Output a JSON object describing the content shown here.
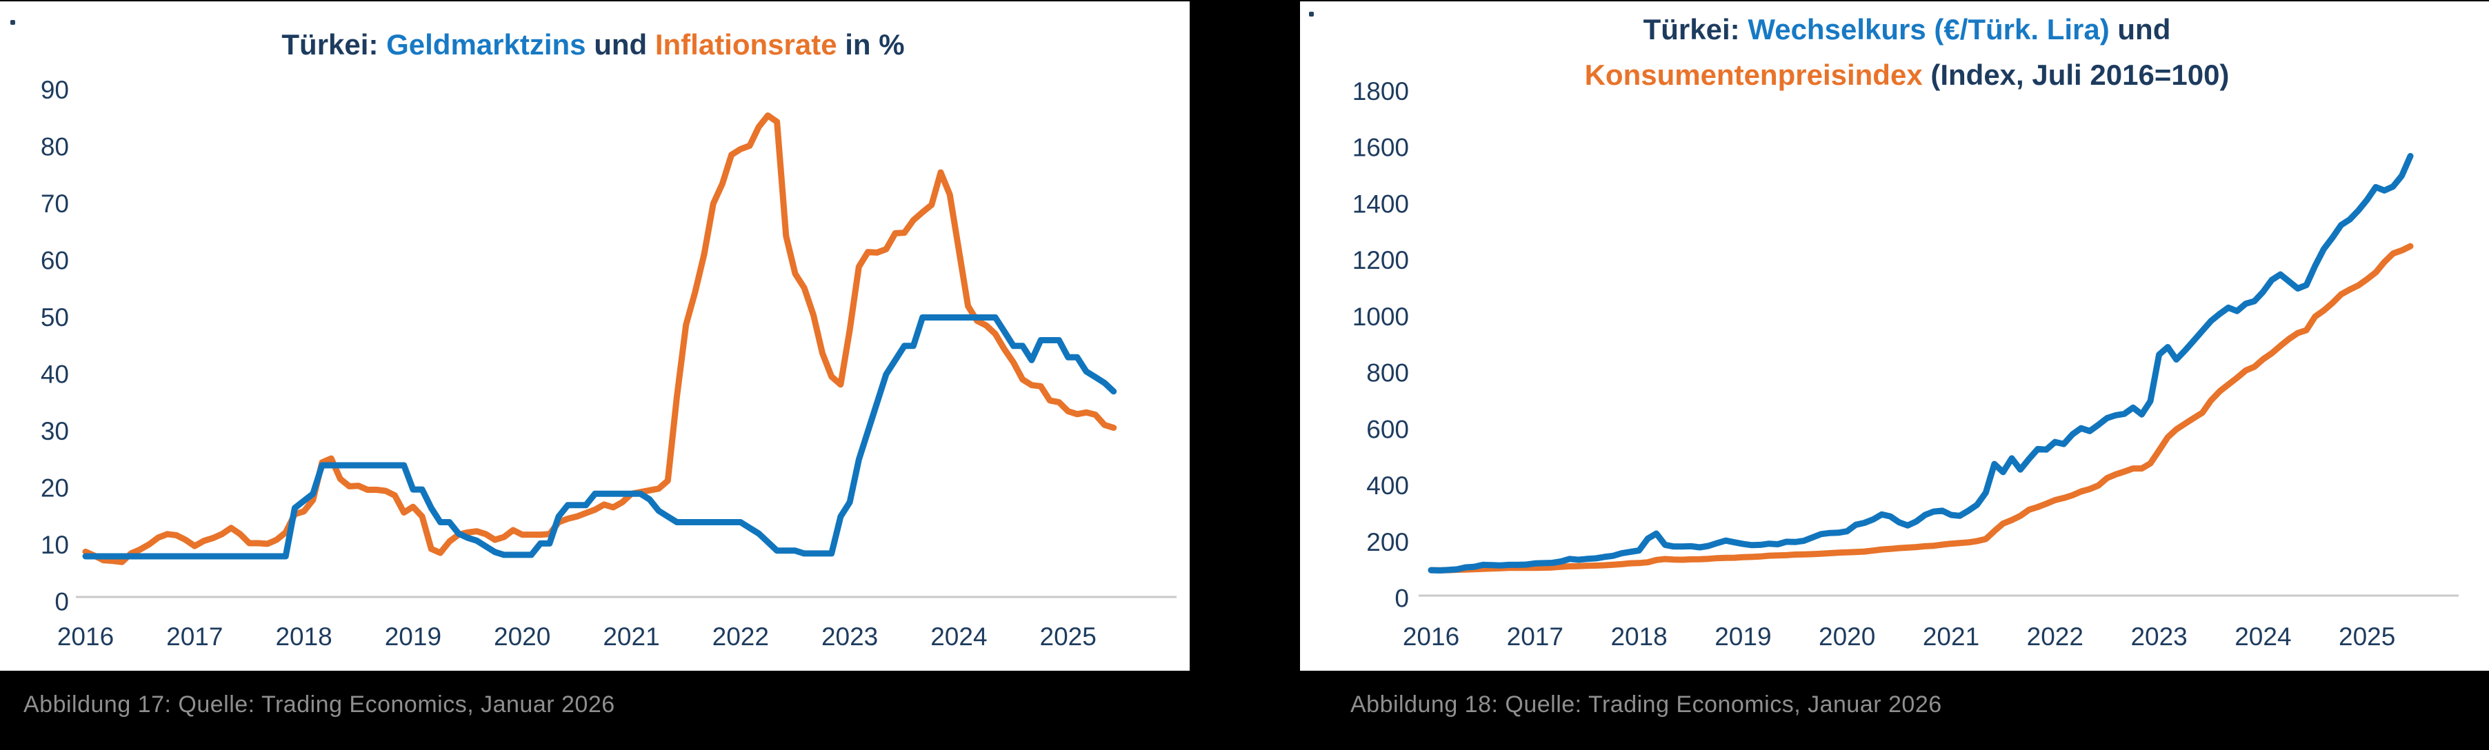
{
  "colors": {
    "background": "#000000",
    "panel": "#ffffff",
    "navy": "#1d3b5e",
    "bright_blue": "#1779c4",
    "blue": "#1175bd",
    "orange": "#e8732a",
    "caption_gray": "#8f8f8f",
    "axis_line": "#c9c9c9"
  },
  "left": {
    "title": {
      "part1": "Türkei: ",
      "part2": "Geldmarktzins",
      "part3": " und ",
      "part4": "Inflationsrate",
      "part5": " in %"
    },
    "caption": "Abbildung 17: Quelle: Trading Economics, Januar 2026",
    "chart_data": {
      "type": "line",
      "title": "Türkei: Geldmarktzins und Inflationsrate in %",
      "xlabel": "",
      "ylabel": "",
      "x_start": "2016-07",
      "x_end": "2025-12",
      "x_freq": "monthly",
      "x_tick_years": [
        "2016",
        "2017",
        "2018",
        "2019",
        "2020",
        "2021",
        "2022",
        "2023",
        "2024",
        "2025"
      ],
      "x_tick_align": "mid-year",
      "ylim": [
        0,
        90
      ],
      "yticks": [
        0,
        10,
        20,
        30,
        40,
        50,
        60,
        70,
        80,
        90
      ],
      "grid": false,
      "legend": "in-title-colors",
      "series": [
        {
          "name": "Inflationsrate",
          "color": "orange",
          "values": [
            8.8,
            8.1,
            7.3,
            7.2,
            7.0,
            8.5,
            9.2,
            10.1,
            11.3,
            11.9,
            11.7,
            10.9,
            9.8,
            10.7,
            11.2,
            11.9,
            13.0,
            11.9,
            10.3,
            10.3,
            10.2,
            10.9,
            12.2,
            15.4,
            15.9,
            17.9,
            24.5,
            25.2,
            21.6,
            20.3,
            20.4,
            19.7,
            19.7,
            19.5,
            18.7,
            15.7,
            16.7,
            15.0,
            9.3,
            8.6,
            10.6,
            11.8,
            12.2,
            12.4,
            11.9,
            10.9,
            11.4,
            12.6,
            11.8,
            11.8,
            11.8,
            11.9,
            14.0,
            14.6,
            15.0,
            15.6,
            16.2,
            17.1,
            16.6,
            17.5,
            19.0,
            19.3,
            19.6,
            19.9,
            21.3,
            36.1,
            48.7,
            54.4,
            61.1,
            70.0,
            73.5,
            78.6,
            79.6,
            80.2,
            83.5,
            85.5,
            84.4,
            64.3,
            57.7,
            55.2,
            50.5,
            43.7,
            39.6,
            38.2,
            47.8,
            58.9,
            61.5,
            61.4,
            62.0,
            64.8,
            64.9,
            67.1,
            68.5,
            69.8,
            75.5,
            71.6,
            61.8,
            52.0,
            49.4,
            48.6,
            47.1,
            44.4,
            42.1,
            39.1,
            38.1,
            37.9,
            35.4,
            35.1,
            33.5,
            33.0,
            33.3,
            32.9,
            31.1,
            30.6
          ]
        },
        {
          "name": "Geldmarktzins",
          "color": "blue",
          "values": [
            8,
            8,
            8,
            8,
            8,
            8,
            8,
            8,
            8,
            8,
            8,
            8,
            8,
            8,
            8,
            8,
            8,
            8,
            8,
            8,
            8,
            8,
            8,
            16.5,
            17.75,
            19,
            24,
            24,
            24,
            24,
            24,
            24,
            24,
            24,
            24,
            24,
            19.75,
            19.75,
            16.5,
            14,
            14,
            12,
            11.25,
            10.75,
            9.75,
            8.75,
            8.25,
            8.25,
            8.25,
            8.25,
            10.25,
            10.25,
            15,
            17,
            17,
            17,
            19,
            19,
            19,
            19,
            19,
            19,
            18,
            16,
            15,
            14,
            14,
            14,
            14,
            14,
            14,
            14,
            14,
            13,
            12,
            10.5,
            9,
            9,
            9,
            8.5,
            8.5,
            8.5,
            8.5,
            15,
            17.5,
            25,
            30,
            35,
            40,
            42.5,
            45,
            45,
            50,
            50,
            50,
            50,
            50,
            50,
            50,
            50,
            50,
            47.5,
            45,
            45,
            42.5,
            46,
            46,
            46,
            43,
            43,
            40.5,
            39.5,
            38.5,
            37
          ]
        }
      ]
    }
  },
  "right": {
    "title": {
      "l1p1": "Türkei: ",
      "l1p2": "Wechselkurs (€/Türk. Lira)",
      "l1p3": " und",
      "l2p1": "Konsumentenpreisindex",
      "l2p2": " (Index, Juli 2016=100)"
    },
    "caption": "Abbildung 18: Quelle: Trading Economics, Januar 2026",
    "chart_data": {
      "type": "line",
      "title": "Türkei: Wechselkurs (€/Türk. Lira) und Konsumentenpreisindex (Index, Juli 2016=100)",
      "xlabel": "",
      "ylabel": "",
      "x_start": "2016-07",
      "x_end": "2025-12",
      "x_freq": "monthly",
      "x_tick_years": [
        "2016",
        "2017",
        "2018",
        "2019",
        "2020",
        "2021",
        "2022",
        "2023",
        "2024",
        "2025"
      ],
      "x_tick_align": "mid-year",
      "ylim": [
        0,
        1800
      ],
      "yticks": [
        0,
        200,
        400,
        600,
        800,
        1000,
        1200,
        1400,
        1600,
        1800
      ],
      "grid": false,
      "legend": "in-title-colors",
      "series": [
        {
          "name": "Konsumentenpreisindex",
          "color": "orange",
          "values": [
            100,
            99.9,
            100.1,
            101.5,
            102.1,
            103.6,
            104.7,
            105.6,
            106.7,
            108.1,
            108.6,
            108.3,
            108.4,
            109.0,
            109.7,
            112.0,
            113.7,
            114.3,
            115.4,
            116.3,
            117.4,
            119.5,
            121.4,
            124.5,
            125.2,
            127.9,
            136.0,
            139.6,
            137.6,
            137.0,
            138.4,
            138.9,
            140.3,
            142.7,
            144.0,
            144.1,
            146.1,
            147.1,
            148.5,
            151.5,
            152.1,
            153.2,
            155.3,
            156.0,
            156.9,
            158.3,
            160.4,
            162.3,
            163.2,
            164.6,
            166.2,
            169.6,
            173.4,
            175.5,
            178.5,
            180.1,
            182.1,
            185.1,
            186.8,
            190.7,
            194.1,
            196.3,
            198.7,
            203.3,
            210.4,
            238.8,
            265.4,
            277.9,
            292.9,
            314.7,
            324.2,
            336.1,
            348.6,
            356.4,
            365.8,
            379.3,
            388.0,
            400.5,
            427,
            440,
            450,
            461,
            461,
            479,
            525,
            572,
            600,
            620,
            640,
            659,
            703,
            735,
            759,
            783,
            809,
            822,
            849,
            870,
            896,
            921,
            942,
            952,
            1000,
            1022,
            1048,
            1079,
            1096,
            1111,
            1133,
            1157,
            1194,
            1224,
            1235,
            1250
          ]
        },
        {
          "name": "Wechselkurs (€/Türk. Lira)",
          "color": "blue",
          "values": [
            100,
            99,
            101,
            103,
            110,
            112,
            119,
            118,
            117,
            119,
            119,
            120,
            124,
            125,
            126,
            131,
            140,
            137,
            140,
            142,
            147,
            151,
            160,
            165,
            170,
            212,
            230,
            190,
            184,
            184,
            185,
            181,
            186,
            196,
            205,
            199,
            193,
            189,
            190,
            194,
            192,
            201,
            200,
            204,
            216,
            228,
            232,
            233,
            238,
            261,
            268,
            280,
            298,
            291,
            270,
            259,
            273,
            296,
            308,
            311,
            296,
            293,
            311,
            332,
            375,
            477,
            448,
            497,
            457,
            495,
            530,
            528,
            555,
            548,
            582,
            604,
            594,
            616,
            640,
            650,
            655,
            677,
            653,
            700,
            865,
            892,
            848,
            880,
            915,
            950,
            985,
            1010,
            1032,
            1020,
            1046,
            1055,
            1088,
            1130,
            1150,
            1125,
            1100,
            1112,
            1180,
            1240,
            1280,
            1325,
            1345,
            1377,
            1415,
            1460,
            1448,
            1462,
            1500,
            1570
          ]
        }
      ]
    }
  }
}
